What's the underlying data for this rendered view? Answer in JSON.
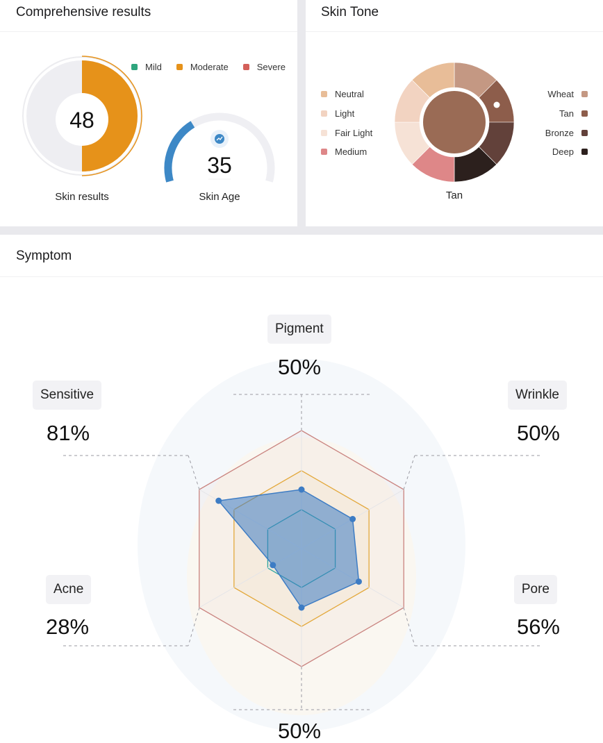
{
  "comprehensive": {
    "title": "Comprehensive results",
    "legend": [
      {
        "label": "Mild",
        "color": "#2fa57d"
      },
      {
        "label": "Moderate",
        "color": "#e6921a"
      },
      {
        "label": "Severe",
        "color": "#d4605a"
      }
    ],
    "skin_results": {
      "value": "48",
      "label": "Skin results",
      "fraction": 0.5,
      "color": "#e6921a"
    },
    "skin_age": {
      "value": "35",
      "label": "Skin Age",
      "fraction": 0.35,
      "color": "#3d88c6",
      "icon": "trend-icon"
    }
  },
  "skin_tone": {
    "title": "Skin Tone",
    "selected": "Tan",
    "selected_color": "#9a6b55",
    "legend_left": [
      {
        "label": "Neutral",
        "color": "#e8bd98"
      },
      {
        "label": "Light",
        "color": "#f2d3c1"
      },
      {
        "label": "Fair Light",
        "color": "#f6e2d6"
      },
      {
        "label": "Medium",
        "color": "#de8788"
      }
    ],
    "legend_right": [
      {
        "label": "Wheat",
        "color": "#c49883"
      },
      {
        "label": "Tan",
        "color": "#8d5d4b"
      },
      {
        "label": "Bronze",
        "color": "#62413a"
      },
      {
        "label": "Deep",
        "color": "#2c201d"
      }
    ]
  },
  "symptom": {
    "title": "Symptom",
    "colors": {
      "mild": "#2fa5a0",
      "moderate": "#e3a83b",
      "severe": "#c9837f",
      "data": "#3d7cc4"
    },
    "chart_data": {
      "type": "radar",
      "axes": [
        "Pigment",
        "Wrinkle",
        "Pore",
        "",
        "Acne",
        "Sensitive"
      ],
      "values": [
        50,
        50,
        56,
        50,
        28,
        81
      ],
      "labels": [
        {
          "name": "Pigment",
          "value": "50%"
        },
        {
          "name": "Wrinkle",
          "value": "50%"
        },
        {
          "name": "Pore",
          "value": "56%"
        },
        {
          "name": "",
          "value": "50%"
        },
        {
          "name": "Acne",
          "value": "28%"
        },
        {
          "name": "Sensitive",
          "value": "81%"
        }
      ],
      "range": [
        0,
        100
      ],
      "rings": [
        33,
        66,
        100
      ]
    }
  }
}
